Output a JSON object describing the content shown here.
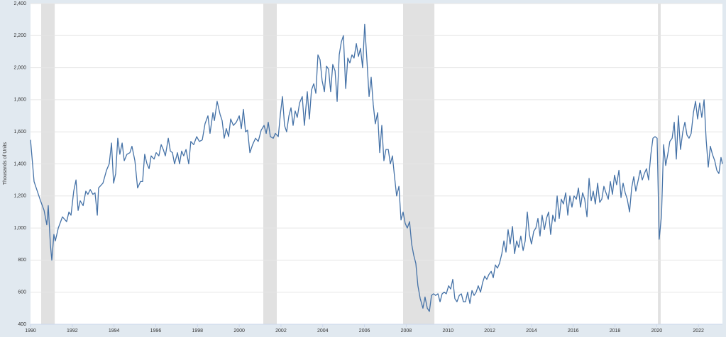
{
  "chart_data": {
    "type": "line",
    "y_label": "Thousands of Units",
    "color": "#4572a7",
    "grid": true,
    "xlim": [
      1990,
      2023.15
    ],
    "ylim": [
      400,
      2400
    ],
    "xticks": [
      1990,
      1992,
      1994,
      1996,
      1998,
      2000,
      2002,
      2004,
      2006,
      2008,
      2010,
      2012,
      2014,
      2016,
      2018,
      2020,
      2022
    ],
    "yticks": [
      {
        "value": 400,
        "label": "400"
      },
      {
        "value": 600,
        "label": "600"
      },
      {
        "value": 800,
        "label": "800"
      },
      {
        "value": 1000,
        "label": "1,000"
      },
      {
        "value": 1200,
        "label": "1,200"
      },
      {
        "value": 1400,
        "label": "1,400"
      },
      {
        "value": 1600,
        "label": "1,600"
      },
      {
        "value": 1800,
        "label": "1,800"
      },
      {
        "value": 2000,
        "label": "2,000"
      },
      {
        "value": 2200,
        "label": "2,200"
      },
      {
        "value": 2400,
        "label": "2,400"
      }
    ],
    "recessions": [
      [
        1990.51,
        1991.16
      ],
      [
        2001.15,
        2001.8
      ],
      [
        2007.85,
        2009.35
      ],
      [
        2020.06,
        2020.19
      ]
    ],
    "x": [
      1990.0,
      1990.17,
      1990.48,
      1990.65,
      1990.78,
      1990.85,
      1990.95,
      1991.02,
      1991.12,
      1991.19,
      1991.33,
      1991.53,
      1991.73,
      1991.84,
      1991.94,
      1992.07,
      1992.18,
      1992.28,
      1992.38,
      1992.52,
      1992.65,
      1992.75,
      1992.86,
      1992.99,
      1993.09,
      1993.2,
      1993.26,
      1993.47,
      1993.64,
      1993.77,
      1993.88,
      1993.98,
      1994.08,
      1994.18,
      1994.28,
      1994.39,
      1994.49,
      1994.62,
      1994.76,
      1994.86,
      1995.0,
      1995.13,
      1995.27,
      1995.37,
      1995.47,
      1995.58,
      1995.68,
      1995.78,
      1995.92,
      1996.02,
      1996.15,
      1996.26,
      1996.36,
      1996.46,
      1996.6,
      1996.7,
      1996.8,
      1996.9,
      1997.04,
      1997.14,
      1997.24,
      1997.34,
      1997.45,
      1997.58,
      1997.68,
      1997.82,
      1997.96,
      1998.09,
      1998.23,
      1998.36,
      1998.5,
      1998.6,
      1998.74,
      1998.81,
      1998.94,
      1999.08,
      1999.18,
      1999.28,
      1999.38,
      1999.49,
      1999.59,
      1999.72,
      1999.86,
      2000.0,
      2000.1,
      2000.2,
      2000.3,
      2000.4,
      2000.51,
      2000.64,
      2000.78,
      2000.91,
      2001.05,
      2001.19,
      2001.29,
      2001.39,
      2001.49,
      2001.63,
      2001.73,
      2001.87,
      2001.97,
      2002.07,
      2002.17,
      2002.27,
      2002.38,
      2002.48,
      2002.58,
      2002.68,
      2002.78,
      2002.89,
      2003.02,
      2003.12,
      2003.26,
      2003.36,
      2003.46,
      2003.57,
      2003.67,
      2003.77,
      2003.87,
      2003.97,
      2004.08,
      2004.18,
      2004.28,
      2004.38,
      2004.48,
      2004.59,
      2004.69,
      2004.79,
      2004.89,
      2004.99,
      2005.1,
      2005.2,
      2005.3,
      2005.4,
      2005.5,
      2005.61,
      2005.71,
      2005.81,
      2005.91,
      2006.01,
      2006.12,
      2006.22,
      2006.32,
      2006.42,
      2006.52,
      2006.63,
      2006.73,
      2006.83,
      2006.93,
      2007.03,
      2007.14,
      2007.24,
      2007.34,
      2007.44,
      2007.54,
      2007.65,
      2007.75,
      2007.85,
      2007.95,
      2008.05,
      2008.16,
      2008.26,
      2008.36,
      2008.46,
      2008.56,
      2008.67,
      2008.8,
      2008.9,
      2009.01,
      2009.11,
      2009.21,
      2009.31,
      2009.41,
      2009.52,
      2009.62,
      2009.72,
      2009.82,
      2009.92,
      2010.03,
      2010.13,
      2010.23,
      2010.33,
      2010.43,
      2010.54,
      2010.64,
      2010.74,
      2010.84,
      2010.94,
      2011.05,
      2011.15,
      2011.25,
      2011.35,
      2011.45,
      2011.56,
      2011.66,
      2011.76,
      2011.86,
      2011.96,
      2012.07,
      2012.17,
      2012.27,
      2012.37,
      2012.47,
      2012.58,
      2012.68,
      2012.78,
      2012.88,
      2012.98,
      2013.09,
      2013.19,
      2013.29,
      2013.39,
      2013.49,
      2013.6,
      2013.7,
      2013.8,
      2013.9,
      2014.0,
      2014.11,
      2014.21,
      2014.31,
      2014.41,
      2014.51,
      2014.62,
      2014.72,
      2014.82,
      2014.92,
      2015.02,
      2015.13,
      2015.23,
      2015.33,
      2015.43,
      2015.53,
      2015.64,
      2015.74,
      2015.84,
      2015.94,
      2016.04,
      2016.15,
      2016.25,
      2016.35,
      2016.45,
      2016.55,
      2016.66,
      2016.76,
      2016.86,
      2016.96,
      2017.06,
      2017.17,
      2017.27,
      2017.37,
      2017.47,
      2017.57,
      2017.68,
      2017.78,
      2017.88,
      2017.98,
      2018.08,
      2018.19,
      2018.29,
      2018.39,
      2018.49,
      2018.59,
      2018.7,
      2018.8,
      2018.9,
      2019.0,
      2019.1,
      2019.21,
      2019.31,
      2019.41,
      2019.51,
      2019.61,
      2019.72,
      2019.82,
      2019.92,
      2020.02,
      2020.12,
      2020.23,
      2020.33,
      2020.43,
      2020.53,
      2020.63,
      2020.74,
      2020.84,
      2020.94,
      2021.04,
      2021.14,
      2021.25,
      2021.35,
      2021.45,
      2021.55,
      2021.65,
      2021.76,
      2021.86,
      2021.96,
      2022.06,
      2022.16,
      2022.27,
      2022.37,
      2022.47,
      2022.57,
      2022.67,
      2022.78,
      2022.88,
      2022.98,
      2023.08,
      2023.15
    ],
    "values": [
      1550,
      1290,
      1170,
      1110,
      1020,
      1140,
      900,
      800,
      960,
      920,
      1000,
      1070,
      1040,
      1100,
      1080,
      1230,
      1300,
      1110,
      1170,
      1140,
      1230,
      1210,
      1240,
      1210,
      1220,
      1080,
      1250,
      1280,
      1360,
      1400,
      1530,
      1280,
      1340,
      1560,
      1460,
      1530,
      1420,
      1460,
      1470,
      1510,
      1420,
      1250,
      1290,
      1290,
      1460,
      1400,
      1370,
      1450,
      1430,
      1470,
      1450,
      1520,
      1490,
      1450,
      1560,
      1480,
      1470,
      1400,
      1470,
      1400,
      1480,
      1450,
      1490,
      1400,
      1540,
      1520,
      1570,
      1540,
      1550,
      1650,
      1700,
      1590,
      1720,
      1670,
      1790,
      1710,
      1670,
      1560,
      1620,
      1570,
      1680,
      1640,
      1660,
      1700,
      1620,
      1740,
      1600,
      1610,
      1470,
      1520,
      1560,
      1540,
      1610,
      1640,
      1590,
      1660,
      1570,
      1560,
      1590,
      1570,
      1710,
      1820,
      1640,
      1600,
      1700,
      1750,
      1640,
      1730,
      1690,
      1780,
      1820,
      1640,
      1850,
      1680,
      1860,
      1900,
      1840,
      2080,
      2050,
      1920,
      1850,
      2010,
      1990,
      1850,
      2020,
      1980,
      1790,
      2080,
      2160,
      2200,
      1870,
      2060,
      2030,
      2080,
      2060,
      2150,
      2070,
      2120,
      2000,
      2270,
      2040,
      1820,
      1940,
      1770,
      1650,
      1720,
      1470,
      1640,
      1420,
      1490,
      1490,
      1400,
      1450,
      1320,
      1200,
      1260,
      1050,
      1100,
      1030,
      1000,
      1040,
      900,
      830,
      780,
      640,
      560,
      500,
      570,
      500,
      480,
      580,
      590,
      580,
      590,
      540,
      590,
      600,
      590,
      640,
      620,
      680,
      560,
      540,
      580,
      590,
      540,
      540,
      600,
      530,
      610,
      580,
      600,
      640,
      600,
      660,
      700,
      680,
      710,
      730,
      690,
      770,
      750,
      780,
      840,
      920,
      850,
      990,
      900,
      1010,
      840,
      920,
      880,
      950,
      860,
      920,
      1100,
      960,
      900,
      980,
      1000,
      1060,
      950,
      1080,
      990,
      1060,
      1100,
      960,
      1080,
      1040,
      1200,
      1060,
      1180,
      1150,
      1220,
      1080,
      1200,
      1130,
      1200,
      1180,
      1250,
      1130,
      1220,
      1180,
      1070,
      1310,
      1170,
      1230,
      1150,
      1280,
      1160,
      1180,
      1260,
      1220,
      1180,
      1290,
      1210,
      1330,
      1270,
      1360,
      1190,
      1280,
      1220,
      1180,
      1100,
      1250,
      1320,
      1230,
      1290,
      1360,
      1300,
      1340,
      1370,
      1300,
      1460,
      1560,
      1570,
      1560,
      930,
      1080,
      1520,
      1390,
      1460,
      1540,
      1560,
      1660,
      1430,
      1700,
      1490,
      1600,
      1660,
      1580,
      1560,
      1590,
      1720,
      1790,
      1680,
      1780,
      1690,
      1800,
      1550,
      1380,
      1510,
      1460,
      1420,
      1360,
      1340,
      1440,
      1400
    ]
  }
}
